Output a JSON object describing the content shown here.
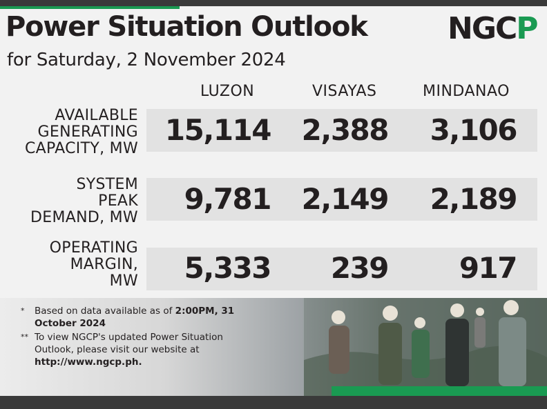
{
  "header": {
    "title": "Power Situation Outlook",
    "subtitle": "for Saturday, 2 November 2024",
    "logo_text": "NGCP"
  },
  "columns": [
    "LUZON",
    "VISAYAS",
    "MINDANAO"
  ],
  "rows": [
    {
      "label_lines": [
        "AVAILABLE",
        "GENERATING",
        "CAPACITY, MW"
      ],
      "values": [
        "15,114",
        "2,388",
        "3,106"
      ]
    },
    {
      "label_lines": [
        "SYSTEM",
        "PEAK",
        "DEMAND, MW"
      ],
      "values": [
        "9,781",
        "2,149",
        "2,189"
      ]
    },
    {
      "label_lines": [
        "OPERATING",
        "MARGIN,",
        "MW"
      ],
      "values": [
        "5,333",
        "239",
        "917"
      ]
    }
  ],
  "notes": {
    "note1_mark": "*",
    "note1_text": "Based on data available as of ",
    "note1_bold": "2:00PM, 31 October 2024",
    "note2_mark": "**",
    "note2_text": "To view NGCP's updated Power Situation Outlook, please visit our website at",
    "note2_url": "http://www.ngcp.ph."
  },
  "colors": {
    "brand_green": "#1a9a52",
    "dark": "#231f20"
  }
}
